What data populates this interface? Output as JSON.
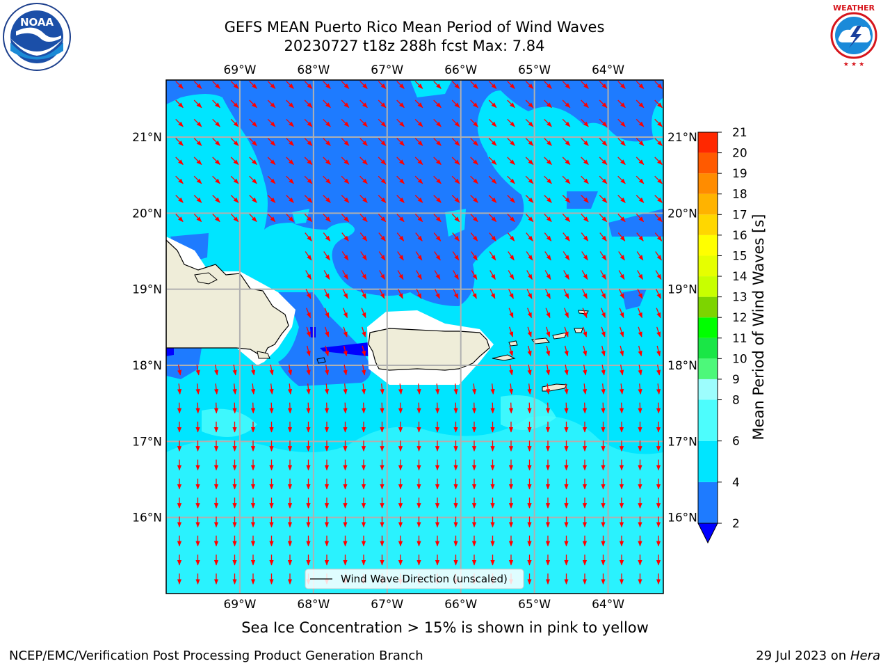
{
  "title_line1": "GEFS MEAN Puerto Rico Mean Period of Wind Waves",
  "title_line2": "20230727 t18z 288h fcst   Max: 7.84",
  "caption": "Sea Ice Concentration > 15% is shown in pink to yellow",
  "footer_left": "NCEP/EMC/Verification Post Processing Product Generation Branch",
  "footer_date": "29 Jul 2023 on ",
  "footer_host": "Hera",
  "logos": {
    "left": "noaa-logo",
    "right": "national-weather-service-logo"
  },
  "map": {
    "lon_range": [
      -70.0,
      -63.25
    ],
    "lat_range": [
      15.0,
      21.75
    ],
    "lon_ticks": [
      {
        "value": -69,
        "label": "69°W"
      },
      {
        "value": -68,
        "label": "68°W"
      },
      {
        "value": -67,
        "label": "67°W"
      },
      {
        "value": -66,
        "label": "66°W"
      },
      {
        "value": -65,
        "label": "65°W"
      },
      {
        "value": -64,
        "label": "64°W"
      }
    ],
    "lat_ticks": [
      {
        "value": 21,
        "label": "21°N"
      },
      {
        "value": 20,
        "label": "20°N"
      },
      {
        "value": 19,
        "label": "19°N"
      },
      {
        "value": 18,
        "label": "18°N"
      },
      {
        "value": 17,
        "label": "17°N"
      },
      {
        "value": 16,
        "label": "16°N"
      }
    ],
    "legend_label": "Wind Wave Direction (unscaled)",
    "arrow_color": "#ff0000",
    "land_color": "#efedd9",
    "gridlines": true
  },
  "colorbar": {
    "label": "Mean Period of Wind Waves [s]",
    "extend": "min",
    "under_color": "#0000ff",
    "levels": [
      2,
      4,
      6,
      8,
      9,
      10,
      11,
      12,
      13,
      14,
      15,
      16,
      17,
      18,
      19,
      20,
      21
    ],
    "colors": [
      "#1e7bff",
      "#00e5ff",
      "#4dfdfd",
      "#9dfdfd",
      "#4df87a",
      "#1ae646",
      "#00ff00",
      "#7dd400",
      "#c8ff00",
      "#e6ff00",
      "#ffff00",
      "#ffd700",
      "#ffb300",
      "#ff8c00",
      "#ff5a00",
      "#ff2800",
      "#ff0000"
    ]
  },
  "chart_data": {
    "type": "heatmap",
    "title": "GEFS MEAN Puerto Rico Mean Period of Wind Waves",
    "subtitle": "20230727 t18z 288h fcst   Max: 7.84",
    "max_value": 7.84,
    "x_range": [
      -70.0,
      -63.25
    ],
    "y_range": [
      15.0,
      21.75
    ],
    "colorbar_label": "Mean Period of Wind Waves [s]",
    "colorbar_range": [
      2,
      21
    ],
    "legend": "Wind Wave Direction (unscaled)"
  }
}
